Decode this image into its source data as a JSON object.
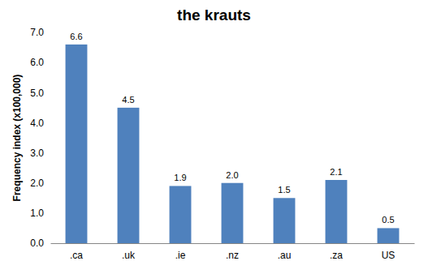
{
  "chart_data": {
    "type": "bar",
    "title": "the krauts",
    "y_label": "Frequency index (x100,000)",
    "categories": [
      ".ca",
      ".uk",
      ".ie",
      ".nz",
      ".au",
      ".za",
      "US"
    ],
    "values": [
      6.6,
      4.5,
      1.9,
      2.0,
      1.5,
      2.1,
      0.5
    ],
    "value_labels": [
      "6.6",
      "4.5",
      "1.9",
      "2.0",
      "1.5",
      "2.1",
      "0.5"
    ],
    "color": "#4f81bd",
    "ylim": [
      0,
      7
    ],
    "yticks": [
      {
        "value": 0,
        "label": "0.0"
      },
      {
        "value": 1,
        "label": "1.0"
      },
      {
        "value": 2,
        "label": "2.0"
      },
      {
        "value": 3,
        "label": "3.0"
      },
      {
        "value": 4,
        "label": "4.0"
      },
      {
        "value": 5,
        "label": "5.0"
      },
      {
        "value": 6,
        "label": "6.0"
      },
      {
        "value": 7,
        "label": "7.0"
      }
    ],
    "grid": false,
    "data_labels": true
  }
}
